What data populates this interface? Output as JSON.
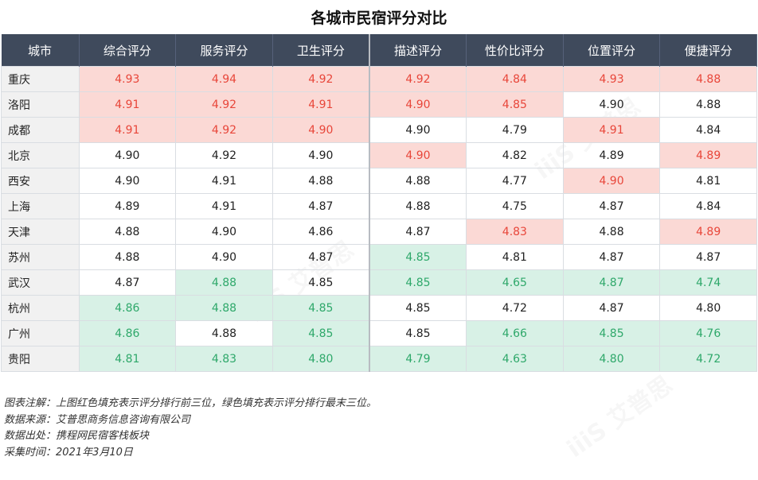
{
  "title": "各城市民宿评分对比",
  "watermark": "iiiS 艾普思",
  "chart_data": {
    "type": "table",
    "title": "各城市民宿评分对比",
    "columns": [
      "城市",
      "综合评分",
      "服务评分",
      "卫生评分",
      "描述评分",
      "性价比评分",
      "位置评分",
      "便捷评分"
    ],
    "rows": [
      {
        "city": "重庆",
        "values": [
          "4.93",
          "4.94",
          "4.92",
          "4.92",
          "4.84",
          "4.93",
          "4.88"
        ],
        "marks": [
          "top",
          "top",
          "top",
          "top",
          "top",
          "top",
          "top"
        ]
      },
      {
        "city": "洛阳",
        "values": [
          "4.91",
          "4.92",
          "4.91",
          "4.90",
          "4.85",
          "4.90",
          "4.88"
        ],
        "marks": [
          "top",
          "top",
          "top",
          "top",
          "top",
          "",
          ""
        ]
      },
      {
        "city": "成都",
        "values": [
          "4.91",
          "4.92",
          "4.90",
          "4.90",
          "4.79",
          "4.91",
          "4.84"
        ],
        "marks": [
          "top",
          "top",
          "top",
          "",
          "",
          "top",
          ""
        ]
      },
      {
        "city": "北京",
        "values": [
          "4.90",
          "4.92",
          "4.90",
          "4.90",
          "4.82",
          "4.89",
          "4.89"
        ],
        "marks": [
          "",
          "",
          "",
          "top",
          "",
          "",
          "top"
        ]
      },
      {
        "city": "西安",
        "values": [
          "4.90",
          "4.91",
          "4.88",
          "4.88",
          "4.77",
          "4.90",
          "4.81"
        ],
        "marks": [
          "",
          "",
          "",
          "",
          "",
          "top",
          ""
        ]
      },
      {
        "city": "上海",
        "values": [
          "4.89",
          "4.91",
          "4.87",
          "4.88",
          "4.75",
          "4.87",
          "4.84"
        ],
        "marks": [
          "",
          "",
          "",
          "",
          "",
          "",
          ""
        ]
      },
      {
        "city": "天津",
        "values": [
          "4.88",
          "4.90",
          "4.86",
          "4.87",
          "4.83",
          "4.88",
          "4.89"
        ],
        "marks": [
          "",
          "",
          "",
          "",
          "top",
          "",
          "top"
        ]
      },
      {
        "city": "苏州",
        "values": [
          "4.88",
          "4.90",
          "4.87",
          "4.85",
          "4.81",
          "4.87",
          "4.87"
        ],
        "marks": [
          "",
          "",
          "",
          "bot",
          "",
          "",
          ""
        ]
      },
      {
        "city": "武汉",
        "values": [
          "4.87",
          "4.88",
          "4.85",
          "4.85",
          "4.65",
          "4.87",
          "4.74"
        ],
        "marks": [
          "",
          "bot",
          "",
          "bot",
          "bot",
          "bot",
          "bot"
        ]
      },
      {
        "city": "杭州",
        "values": [
          "4.86",
          "4.88",
          "4.85",
          "4.85",
          "4.72",
          "4.87",
          "4.80"
        ],
        "marks": [
          "bot",
          "bot",
          "bot",
          "",
          "",
          "",
          ""
        ]
      },
      {
        "city": "广州",
        "values": [
          "4.86",
          "4.88",
          "4.85",
          "4.85",
          "4.66",
          "4.85",
          "4.76"
        ],
        "marks": [
          "bot",
          "",
          "bot",
          "",
          "bot",
          "bot",
          "bot"
        ]
      },
      {
        "city": "贵阳",
        "values": [
          "4.81",
          "4.83",
          "4.80",
          "4.79",
          "4.63",
          "4.80",
          "4.72"
        ],
        "marks": [
          "bot",
          "bot",
          "bot",
          "bot",
          "bot",
          "bot",
          "bot"
        ]
      }
    ],
    "colors": {
      "header_bg": "#3f4a5c",
      "top_fill": "#fbd9d5",
      "top_text": "#e8463a",
      "bottom_fill": "#d8f1e6",
      "bottom_text": "#2ea86a"
    }
  },
  "notes": [
    "图表注解：上图红色填充表示评分排行前三位，绿色填充表示评分排行最末三位。",
    "数据来源：艾普思商务信息咨询有限公司",
    "数据出处：携程网民宿客栈板块",
    "采集时间：2021年3月10日"
  ]
}
